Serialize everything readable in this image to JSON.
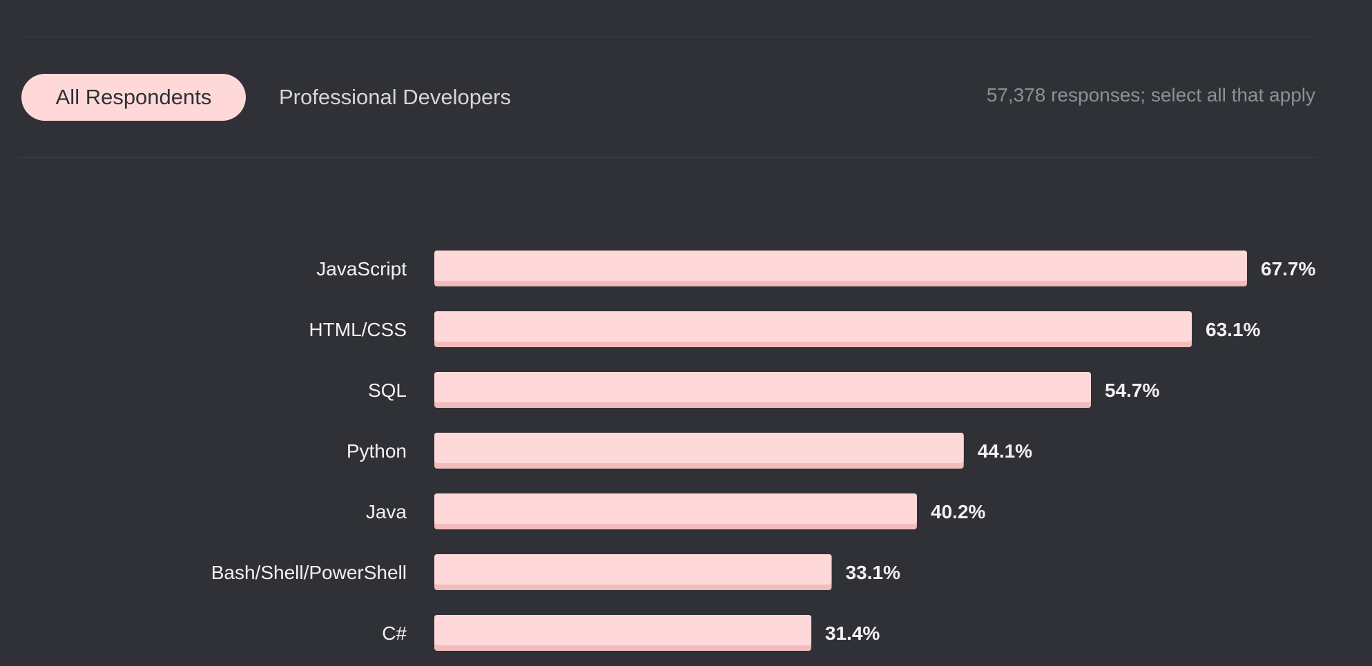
{
  "tabs": {
    "all_respondents": "All Respondents",
    "professional_developers": "Professional Developers"
  },
  "responses_note": "57,378 responses; select all that apply",
  "colors": {
    "background": "#2f3136",
    "bar": "#ffd9d9",
    "bar_shadow": "#f3bcbc",
    "text": "#f2f2f2"
  },
  "chart_data": {
    "type": "bar",
    "orientation": "horizontal",
    "title": "",
    "xlabel": "",
    "ylabel": "",
    "xlim": [
      0,
      67.7
    ],
    "categories": [
      "JavaScript",
      "HTML/CSS",
      "SQL",
      "Python",
      "Java",
      "Bash/Shell/PowerShell",
      "C#"
    ],
    "values": [
      67.7,
      63.1,
      54.7,
      44.1,
      40.2,
      33.1,
      31.4
    ],
    "value_labels": [
      "67.7%",
      "63.1%",
      "54.7%",
      "44.1%",
      "40.2%",
      "33.1%",
      "31.4%"
    ]
  }
}
